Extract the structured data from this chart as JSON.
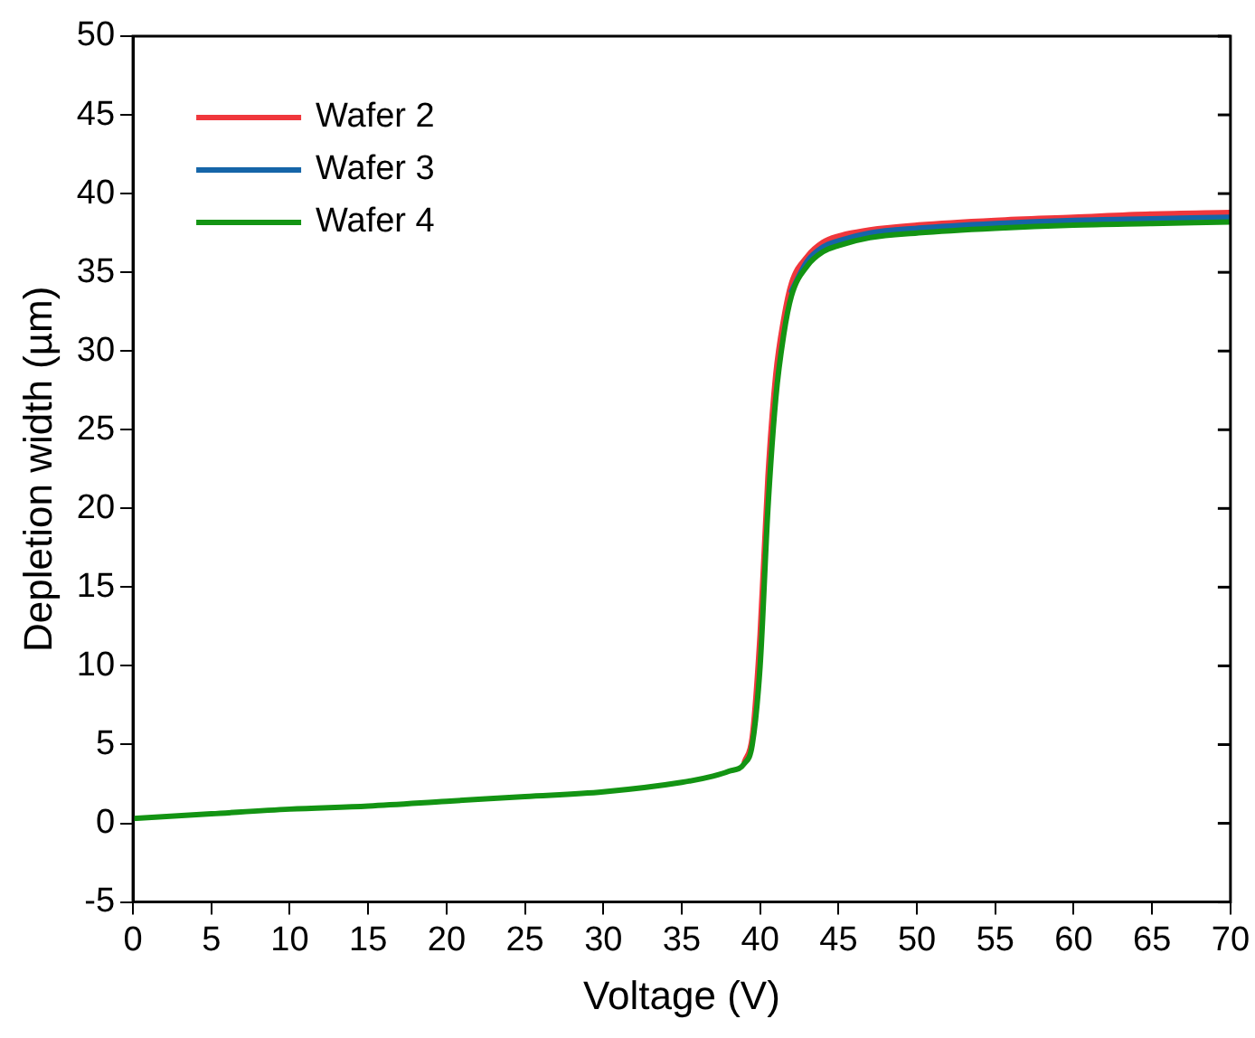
{
  "chart_data": {
    "type": "line",
    "xlabel": "Voltage (V)",
    "ylabel": "Depletion width (µm)",
    "xlim": [
      0,
      70
    ],
    "xticks": [
      0,
      5,
      10,
      15,
      20,
      25,
      30,
      35,
      40,
      45,
      50,
      55,
      60,
      65,
      70
    ],
    "ylim": [
      -5,
      50
    ],
    "yticks": [
      -5,
      0,
      5,
      10,
      15,
      20,
      25,
      30,
      35,
      40,
      45,
      50
    ],
    "grid": false,
    "legend": "top left",
    "marker": "none",
    "line_style": "solid",
    "x": [
      0,
      5,
      10,
      15,
      20,
      25,
      30,
      35,
      37,
      38,
      39,
      39.5,
      40,
      40.5,
      41,
      41.5,
      42,
      43,
      44,
      45,
      47,
      50,
      55,
      60,
      65,
      70
    ],
    "series": [
      {
        "name": "Wafer 2",
        "color": "#f0373c",
        "values": [
          null,
          null,
          null,
          null,
          null,
          null,
          null,
          null,
          null,
          null,
          3.9,
          5.5,
          12,
          22,
          28.5,
          32,
          34.3,
          36,
          36.9,
          37.3,
          37.7,
          38.0,
          38.3,
          38.5,
          38.7,
          38.8
        ]
      },
      {
        "name": "Wafer 3",
        "color": "#1565a8",
        "values": [
          null,
          null,
          null,
          null,
          null,
          null,
          null,
          null,
          null,
          null,
          null,
          null,
          null,
          null,
          null,
          null,
          33.8,
          35.7,
          36.6,
          37.0,
          37.5,
          37.8,
          38.1,
          38.3,
          38.4,
          38.5
        ]
      },
      {
        "name": "Wafer 4",
        "color": "#139413",
        "values": [
          0.3,
          0.6,
          0.9,
          1.1,
          1.4,
          1.7,
          2.0,
          2.6,
          3.0,
          3.3,
          3.8,
          5,
          10,
          20,
          27,
          31,
          33.5,
          35.4,
          36.3,
          36.7,
          37.2,
          37.5,
          37.8,
          38.0,
          38.1,
          38.2
        ]
      }
    ]
  }
}
